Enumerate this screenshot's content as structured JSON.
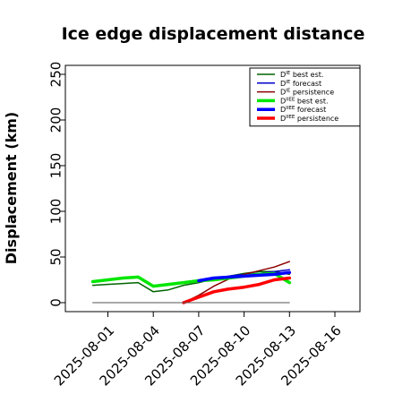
{
  "chart_data": {
    "type": "line",
    "title": "Ice edge displacement distance",
    "xlabel": "",
    "ylabel": "Displacement (km)",
    "ylim": [
      0,
      260
    ],
    "xlim": [
      "2025-07-31",
      "2025-08-18"
    ],
    "yticks": [
      0,
      50,
      100,
      150,
      200,
      250
    ],
    "xticks": [
      {
        "label": "2025-08-01",
        "color": "#000000"
      },
      {
        "label": "2025-08-04",
        "color": "#000000"
      },
      {
        "label": "2025-08-07",
        "color": "#228B22"
      },
      {
        "label": "2025-08-10",
        "color": "#000000"
      },
      {
        "label": "2025-08-13",
        "color": "#000000"
      },
      {
        "label": "2025-08-16",
        "color": "#000000"
      }
    ],
    "grid": false,
    "legend": "top-right",
    "series": [
      {
        "name": "D^IE best est.",
        "legend_base": "D",
        "legend_sup": "IE",
        "legend_rest": " best est.",
        "color": "#006400",
        "width": 1.5,
        "x": [
          "2025-07-31",
          "2025-08-03",
          "2025-08-04",
          "2025-08-05",
          "2025-08-06",
          "2025-08-07",
          "2025-08-08",
          "2025-08-09",
          "2025-08-10",
          "2025-08-11",
          "2025-08-12",
          "2025-08-13"
        ],
        "y": [
          19,
          22,
          12,
          14,
          19,
          22,
          26,
          29,
          32,
          34,
          34,
          31
        ]
      },
      {
        "name": "D^IE forecast",
        "legend_base": "D",
        "legend_sup": "IE",
        "legend_rest": " forecast",
        "color": "#0000CD",
        "width": 1.5,
        "x": [
          "2025-08-07",
          "2025-08-08",
          "2025-08-09",
          "2025-08-10",
          "2025-08-11",
          "2025-08-12",
          "2025-08-13"
        ],
        "y": [
          24,
          26,
          29,
          31,
          32,
          34,
          36
        ]
      },
      {
        "name": "D^IE persistence",
        "legend_base": "D",
        "legend_sup": "IE",
        "legend_rest": " persistence",
        "color": "#8B0000",
        "width": 1.5,
        "x": [
          "2025-08-06",
          "2025-08-07",
          "2025-08-08",
          "2025-08-09",
          "2025-08-10",
          "2025-08-11",
          "2025-08-12",
          "2025-08-13"
        ],
        "y": [
          0,
          8,
          18,
          26,
          31,
          35,
          39,
          45
        ]
      },
      {
        "name": "D^IIEE best est.",
        "legend_base": "D",
        "legend_sup": "IIEE",
        "legend_rest": " best est.",
        "color": "#00E600",
        "width": 3.5,
        "x": [
          "2025-07-31",
          "2025-08-01",
          "2025-08-02",
          "2025-08-03",
          "2025-08-04",
          "2025-08-05",
          "2025-08-06",
          "2025-08-07",
          "2025-08-08",
          "2025-08-09",
          "2025-08-10",
          "2025-08-11",
          "2025-08-12",
          "2025-08-13"
        ],
        "y": [
          23,
          25,
          27,
          28,
          18,
          20,
          22,
          24,
          25,
          27,
          29,
          31,
          32,
          22
        ]
      },
      {
        "name": "D^IIEE forecast",
        "legend_base": "D",
        "legend_sup": "IIEE",
        "legend_rest": " forecast",
        "color": "#0000FF",
        "width": 3.5,
        "x": [
          "2025-08-07",
          "2025-08-08",
          "2025-08-09",
          "2025-08-10",
          "2025-08-11",
          "2025-08-12",
          "2025-08-13"
        ],
        "y": [
          24,
          27,
          28,
          29,
          30,
          31,
          33
        ]
      },
      {
        "name": "D^IIEE persistence",
        "legend_base": "D",
        "legend_sup": "IIEE",
        "legend_rest": " persistence",
        "color": "#FF0000",
        "width": 3.5,
        "x": [
          "2025-08-06",
          "2025-08-07",
          "2025-08-08",
          "2025-08-09",
          "2025-08-10",
          "2025-08-11",
          "2025-08-12",
          "2025-08-13"
        ],
        "y": [
          0,
          6,
          12,
          15,
          17,
          20,
          25,
          27
        ]
      },
      {
        "name": "",
        "legend": false,
        "color": "#555555",
        "width": 1,
        "x": [
          "2025-07-31",
          "2025-08-13"
        ],
        "y": [
          0,
          0
        ]
      }
    ]
  }
}
